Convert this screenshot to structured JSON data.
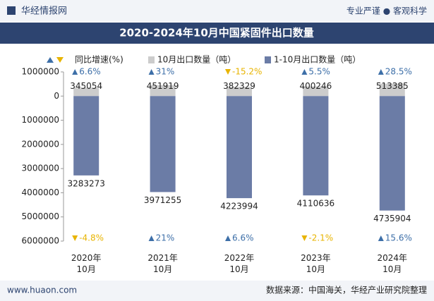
{
  "header": {
    "brand": "华经情报网",
    "slogan": "专业严谨 ● 客观科学"
  },
  "chart_data": {
    "type": "bar",
    "title": "2020-2024年10月中国紧固件出口数量",
    "categories": [
      "2020年10月",
      "2021年10月",
      "2022年10月",
      "2023年10月",
      "2024年10月"
    ],
    "growth_legend": "同比增速(%)",
    "series": [
      {
        "name": "10月出口数量（吨）",
        "color": "#cccccc",
        "side": "up",
        "values": [
          345054,
          451919,
          382329,
          400246,
          513385
        ],
        "growth": [
          6.6,
          31,
          -15.2,
          5.5,
          28.5
        ],
        "growth_labels": [
          "6.6%",
          "31%",
          "-15.2%",
          "5.5%",
          "28.5%"
        ]
      },
      {
        "name": "1-10月出口数量（吨）",
        "color": "#6b7ca6",
        "side": "down",
        "values": [
          3283273,
          3971255,
          4223994,
          4110636,
          4735904
        ],
        "growth": [
          -4.8,
          21,
          6.6,
          -2.1,
          15.6
        ],
        "growth_labels": [
          "-4.8%",
          "21%",
          "6.6%",
          "-2.1%",
          "15.6%"
        ]
      }
    ],
    "up_color": "#3d6fa8",
    "down_color": "#e8b400",
    "ylim": [
      -6000000,
      1000000
    ],
    "yticks": [
      1000000,
      0,
      {
        "value": -1000000,
        "label": "1000000"
      },
      {
        "value": -2000000,
        "label": "2000000"
      },
      {
        "value": -3000000,
        "label": "3000000"
      },
      {
        "value": -4000000,
        "label": "4000000"
      },
      {
        "value": -5000000,
        "label": "5000000"
      },
      {
        "value": -6000000,
        "label": "6000000"
      }
    ]
  },
  "footer": {
    "site": "www.huaon.com",
    "source": "数据来源：中国海关，华经产业研究院整理"
  }
}
